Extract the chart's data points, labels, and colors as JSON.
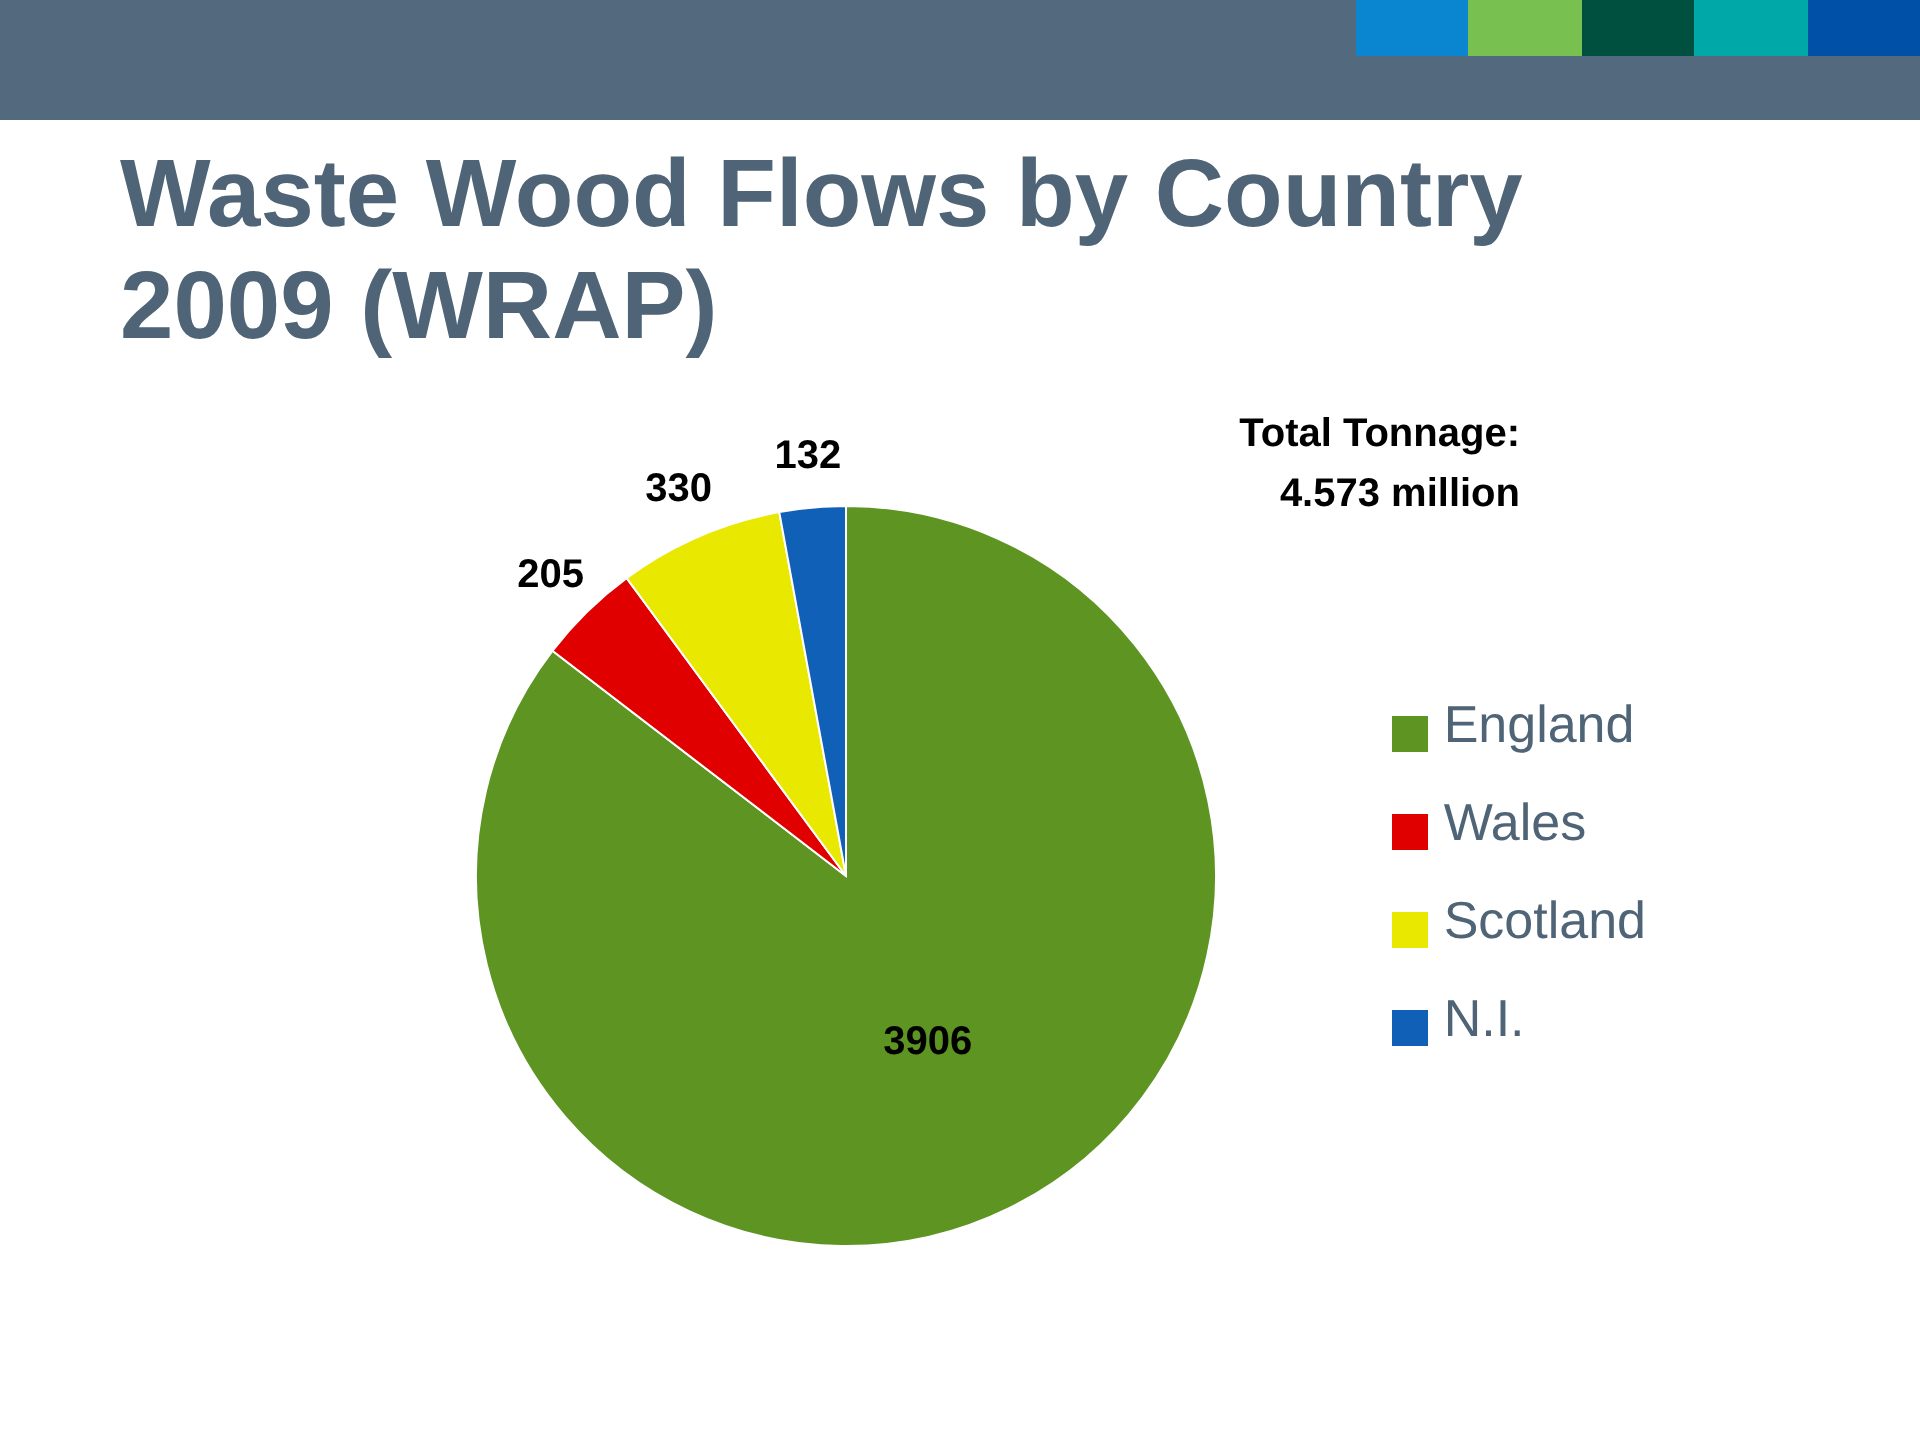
{
  "chart_data": {
    "type": "pie",
    "title": "Waste Wood Flows by Country 2009 (WRAP)",
    "categories": [
      "England",
      "Wales",
      "Scotland",
      "N.I."
    ],
    "values": [
      3906,
      205,
      330,
      132
    ],
    "colors": [
      "#5e9422",
      "#e00000",
      "#e8e800",
      "#1060b8"
    ],
    "data_labels": true,
    "legend": "right",
    "annotations": [
      "Total Tonnage:\n4.573 million"
    ]
  }
}
